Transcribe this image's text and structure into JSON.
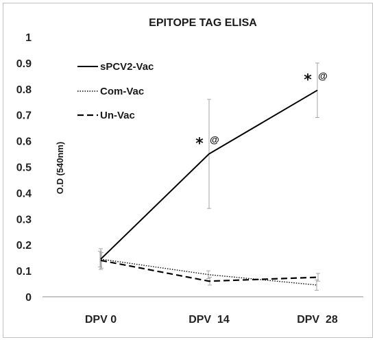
{
  "chart_data": {
    "type": "line",
    "title": "EPITOPE TAG ELISA",
    "xlabel": "",
    "ylabel": "O.D (540nm)",
    "categories": [
      "DPV 0",
      "DPV  14",
      "DPV  28"
    ],
    "ylim": [
      0,
      1
    ],
    "yticks": [
      "0",
      "0.1",
      "0.2",
      "0.3",
      "0.4",
      "0.5",
      "0.6",
      "0.7",
      "0.8",
      "0.9",
      "1"
    ],
    "grid": false,
    "legend_position": "top-left",
    "series": [
      {
        "name": "sPCV2-Vac",
        "style": "solid",
        "values": [
          0.145,
          0.55,
          0.795
        ],
        "error": [
          0.04,
          0.21,
          0.105
        ]
      },
      {
        "name": "Com-Vac",
        "style": "dotted",
        "values": [
          0.145,
          0.085,
          0.045
        ],
        "error": [
          0.03,
          0.015,
          0.02
        ]
      },
      {
        "name": "Un-Vac",
        "style": "dashed",
        "values": [
          0.14,
          0.06,
          0.075
        ],
        "error": [
          0.03,
          0.015,
          0.015
        ]
      }
    ],
    "annotations": [
      {
        "category": "DPV  14",
        "star": "*",
        "at": "@"
      },
      {
        "category": "DPV  28",
        "star": "*",
        "at": "@"
      }
    ],
    "color": "#000000"
  }
}
